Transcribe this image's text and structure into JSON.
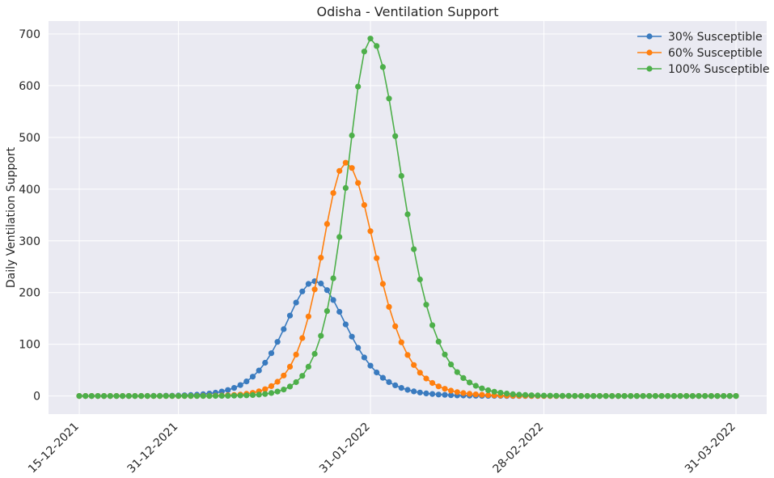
{
  "chart_data": {
    "type": "line",
    "title": "Odisha - Ventilation Support",
    "xlabel": "",
    "ylabel": "Daily Ventilation Support",
    "x_start": "2021-12-15",
    "x_end": "2022-03-31",
    "ylim": [
      -35,
      725
    ],
    "yticks": [
      0,
      100,
      200,
      300,
      400,
      500,
      600,
      700
    ],
    "xticks": [
      {
        "date": "2021-12-15",
        "label": "15-12-2021"
      },
      {
        "date": "2021-12-31",
        "label": "31-12-2021"
      },
      {
        "date": "2022-01-31",
        "label": "31-01-2022"
      },
      {
        "date": "2022-02-28",
        "label": "28-02-2022"
      },
      {
        "date": "2022-03-31",
        "label": "31-03-2022"
      }
    ],
    "grid": true,
    "legend_position": "top-right",
    "marker": "circle",
    "series": [
      {
        "name": "30% Susceptible",
        "color": "#3a7bbf",
        "peak_date": "2022-01-22",
        "peak_value": 222,
        "rise_days": 6.5,
        "fall_days": 7.0
      },
      {
        "name": "60% Susceptible",
        "color": "#ff7f0e",
        "peak_date": "2022-01-27",
        "peak_value": 451,
        "rise_days": 5.3,
        "fall_days": 6.6
      },
      {
        "name": "100% Susceptible",
        "color": "#4daf4a",
        "peak_date": "2022-01-31",
        "peak_value": 691,
        "rise_days": 5.2,
        "fall_days": 6.9
      }
    ]
  }
}
